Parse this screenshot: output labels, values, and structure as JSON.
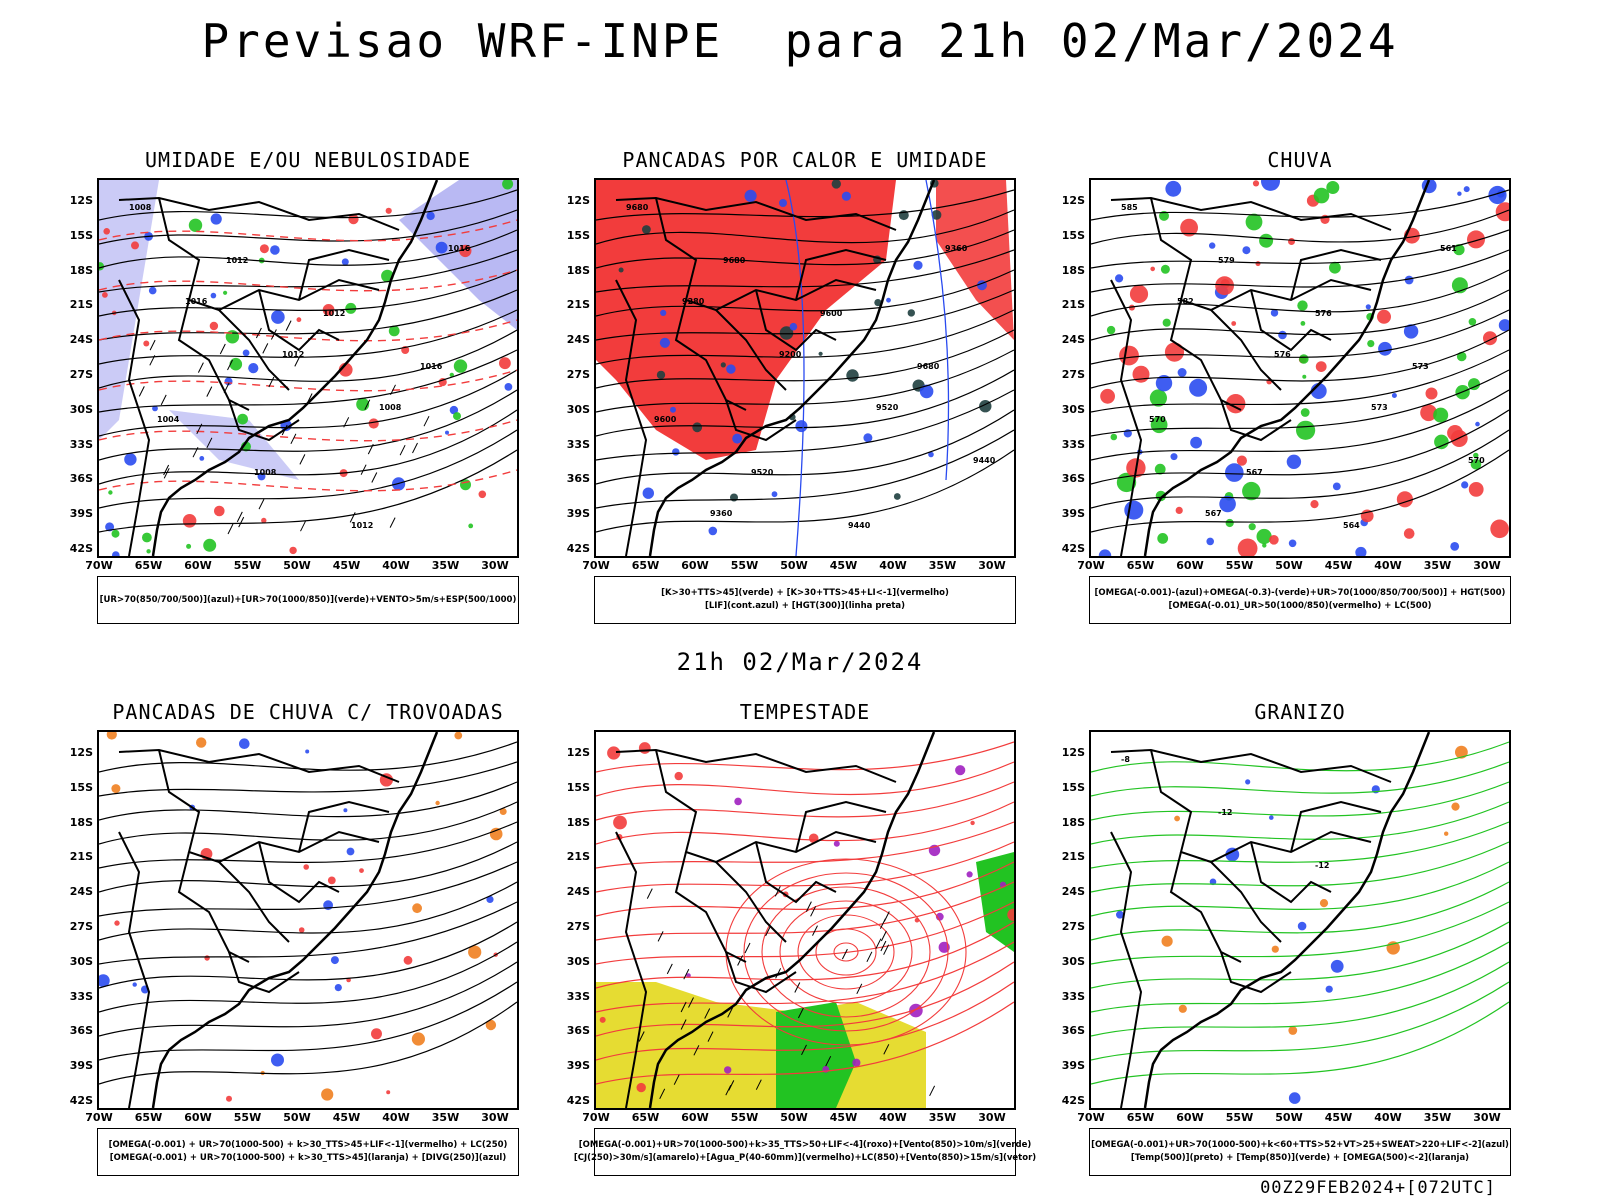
{
  "header": {
    "title": "Previsao WRF-INPE  para 21h 02/Mar/2024"
  },
  "middle": {
    "title": "21h 02/Mar/2024"
  },
  "footer": {
    "run": "00Z29FEB2024+[072UTC]"
  },
  "axes": {
    "lat": [
      "12S",
      "15S",
      "18S",
      "21S",
      "24S",
      "27S",
      "30S",
      "33S",
      "36S",
      "39S",
      "42S"
    ],
    "lon": [
      "70W",
      "65W",
      "60W",
      "55W",
      "50W",
      "45W",
      "40W",
      "35W",
      "30W"
    ]
  },
  "colors": {
    "red": "#f23c3c",
    "green": "#22c322",
    "blue": "#2a4bf0",
    "lavender": "#a8a8f0",
    "yellow": "#e6dc32",
    "darkgreen": "#1f3f3f",
    "purple": "#a020c0",
    "orange": "#f08020"
  },
  "panels": [
    {
      "title": "UMIDADE E/OU NEBULOSIDADE",
      "legend": [
        "[UR>70(850/700/500)](azul)+[UR>70(1000/850)](verde)+VENTO>5m/s+ESP(500/1000)"
      ],
      "contour_labels": [
        "1008",
        "1012",
        "1012",
        "1016",
        "1004",
        "1008",
        "1012",
        "1016",
        "1016",
        "1012",
        "1008"
      ]
    },
    {
      "title": "PANCADAS POR CALOR E UMIDADE",
      "legend": [
        "[K>30+TTS>45](verde) + [K>30+TTS>45+LI<-1](vermelho)",
        "[LIF](cont.azul) + [HGT(300)](linha preta)"
      ],
      "contour_labels": [
        "9680",
        "9680",
        "9600",
        "9680",
        "9600",
        "9520",
        "9440",
        "9360",
        "9280",
        "9200",
        "9520",
        "9440",
        "9360"
      ]
    },
    {
      "title": "CHUVA",
      "legend": [
        "[OMEGA(-0.001)-(azul)+OMEGA(-0.3)-(verde)+UR>70(1000/850/700/500)] + HGT(500)",
        "[OMEGA(-0.01)_UR>50(1000/850)(vermelho) + LC(500)"
      ],
      "contour_labels": [
        "585",
        "579",
        "576",
        "573",
        "570",
        "567",
        "564",
        "561",
        "582",
        "576",
        "573",
        "570",
        "567"
      ]
    },
    {
      "title": "PANCADAS DE CHUVA C/ TROVOADAS",
      "legend": [
        "[OMEGA(-0.001) + UR>70(1000-500) + k>30_TTS>45+LIF<-1](vermelho) + LC(250)",
        "[OMEGA(-0.001) + UR>70(1000-500) + k>30_TTS>45](laranja) + [DIVG(250)](azul)"
      ],
      "contour_labels": []
    },
    {
      "title": "TEMPESTADE",
      "legend": [
        "[OMEGA(-0.001)+UR>70(1000-500)+k>35_TTS>50+LIF<-4](roxo)+[Vento(850)>10m/s](verde)",
        "[CJ(250)>30m/s](amarelo)+[Agua_P(40-60mm)](vermelho)+LC(850)+[Vento(850)>15m/s](vetor)"
      ],
      "contour_labels": []
    },
    {
      "title": "GRANIZO",
      "legend": [
        "[OMEGA(-0.001)+UR>70(1000-500)+k<60+TTS>52+VT>25+SWEAT>220+LIF<-2](azul)",
        "[Temp(500)](preto) + [Temp(850)](verde) + [OMEGA(500)<-2](laranja)"
      ],
      "contour_labels": [
        "-8",
        "-12",
        "-12"
      ]
    }
  ]
}
